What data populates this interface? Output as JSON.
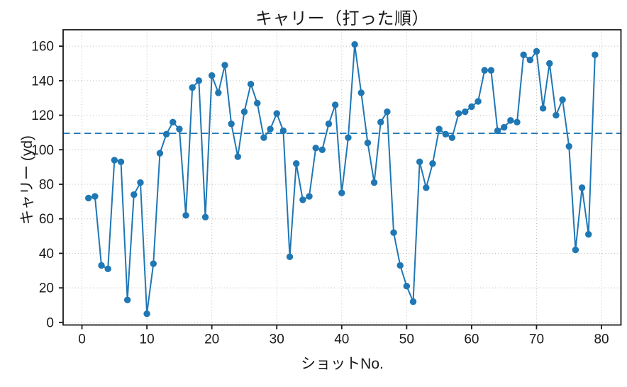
{
  "title": "キャリー（打った順）",
  "chart_data": {
    "type": "line",
    "title": "キャリー（打った順）",
    "xlabel": "ショットNo.",
    "ylabel": "キャリー (yd)",
    "series_name": "キャリー",
    "x": [
      1,
      2,
      3,
      4,
      5,
      6,
      7,
      8,
      9,
      10,
      11,
      12,
      13,
      14,
      15,
      16,
      17,
      18,
      19,
      20,
      21,
      22,
      23,
      24,
      25,
      26,
      27,
      28,
      29,
      30,
      31,
      32,
      33,
      34,
      35,
      36,
      37,
      38,
      39,
      40,
      41,
      42,
      43,
      44,
      45,
      46,
      47,
      48,
      49,
      50,
      51,
      52,
      53,
      54,
      55,
      56,
      57,
      58,
      59,
      60,
      61,
      62,
      63,
      64,
      65,
      66,
      67,
      68,
      69,
      70,
      71,
      72,
      73,
      74,
      75,
      76,
      77,
      78,
      79
    ],
    "values": [
      72,
      73,
      33,
      31,
      94,
      93,
      13,
      74,
      81,
      5,
      34,
      98,
      109,
      116,
      112,
      62,
      136,
      140,
      61,
      143,
      133,
      149,
      115,
      96,
      122,
      138,
      127,
      107,
      112,
      121,
      111,
      38,
      92,
      71,
      73,
      101,
      100,
      115,
      126,
      75,
      107,
      161,
      133,
      104,
      81,
      116,
      122,
      52,
      33,
      21,
      12,
      93,
      78,
      92,
      112,
      109,
      107,
      121,
      122,
      125,
      128,
      146,
      146,
      111,
      113,
      117,
      116,
      155,
      152,
      157,
      124,
      150,
      120,
      129,
      102,
      42,
      78,
      51,
      155
    ],
    "reference_line": {
      "y": 109.5,
      "style": "dashed",
      "color": "#1f77b4"
    },
    "xlim": [
      -2.9,
      83.0
    ],
    "ylim": [
      -1.5,
      169.5
    ],
    "xticks": [
      0,
      10,
      20,
      30,
      40,
      50,
      60,
      70,
      80
    ],
    "yticks": [
      0,
      20,
      40,
      60,
      80,
      100,
      120,
      140,
      160
    ],
    "grid": true,
    "grid_style": "dotted",
    "legend": "none",
    "marker": "o",
    "colors": {
      "line": "#1f77b4",
      "marker": "#1f77b4",
      "reference": "#1f77b4",
      "grid": "#b9b9b9",
      "spine": "#1a1a1a",
      "text": "#1a1a1a",
      "background": "#ffffff"
    }
  }
}
